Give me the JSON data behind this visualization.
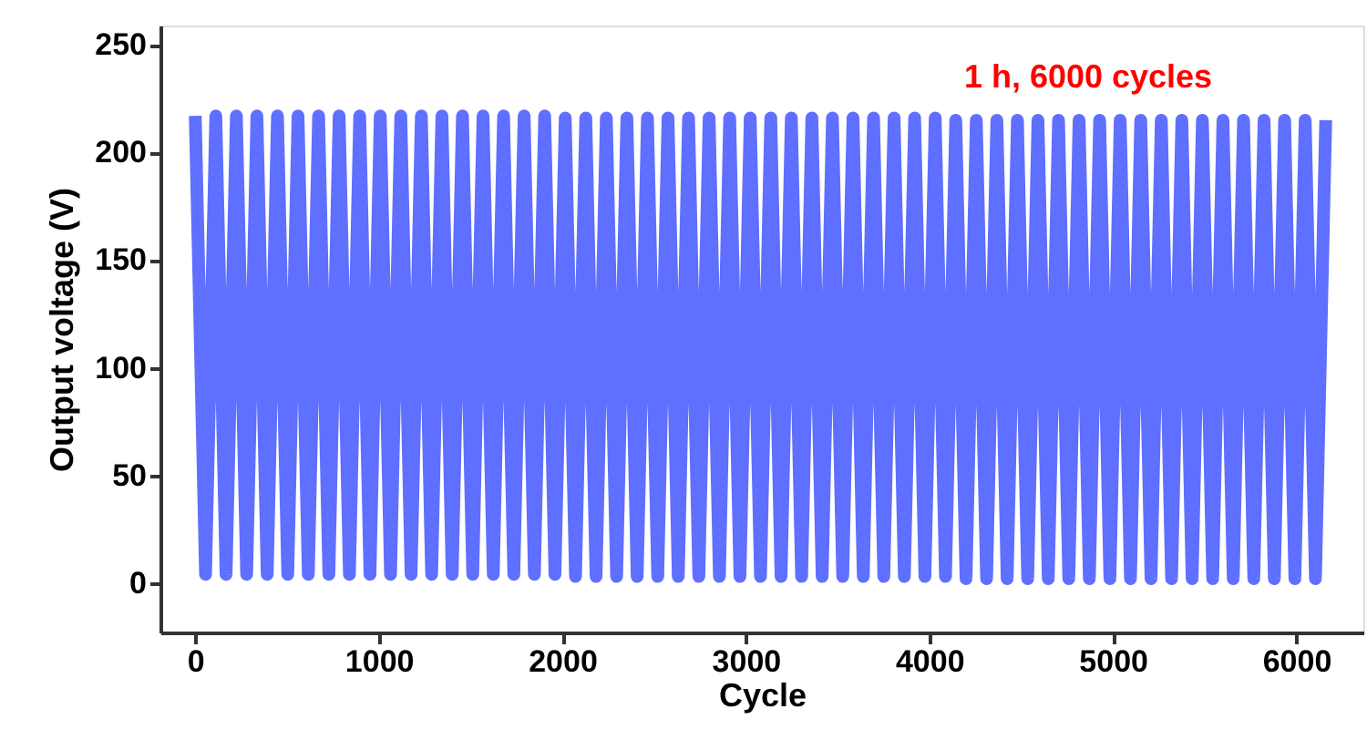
{
  "chart_data": {
    "type": "line",
    "xlabel": "Cycle",
    "ylabel": "Output voltage (V)",
    "annotations": [
      "1 h, 6000 cycles"
    ],
    "xlim": [
      -190,
      6365
    ],
    "ylim": [
      -23,
      259
    ],
    "xticks": [
      0,
      1000,
      2000,
      3000,
      4000,
      5000,
      6000
    ],
    "yticks": [
      0,
      50,
      100,
      150,
      200,
      250
    ],
    "grid": false,
    "marker": "none",
    "line_style": "solid",
    "x": [
      0,
      56,
      112,
      168,
      224,
      280,
      336,
      392,
      448,
      504,
      560,
      616,
      672,
      728,
      784,
      840,
      896,
      952,
      1008,
      1064,
      1120,
      1176,
      1232,
      1288,
      1344,
      1400,
      1456,
      1512,
      1568,
      1624,
      1680,
      1736,
      1792,
      1848,
      1904,
      1960,
      2016,
      2072,
      2128,
      2184,
      2240,
      2296,
      2352,
      2408,
      2464,
      2520,
      2576,
      2632,
      2688,
      2744,
      2800,
      2856,
      2912,
      2968,
      3024,
      3080,
      3136,
      3192,
      3248,
      3304,
      3360,
      3416,
      3472,
      3528,
      3584,
      3640,
      3696,
      3752,
      3808,
      3864,
      3920,
      3976,
      4032,
      4088,
      4144,
      4200,
      4256,
      4312,
      4368,
      4424,
      4480,
      4536,
      4592,
      4648,
      4704,
      4760,
      4816,
      4872,
      4928,
      4984,
      5040,
      5096,
      5152,
      5208,
      5264,
      5320,
      5376,
      5432,
      5488,
      5544,
      5600,
      5656,
      5712,
      5768,
      5824,
      5880,
      5936,
      5992,
      6048,
      6104,
      6160
    ],
    "series": [
      {
        "color": "#5f6fff",
        "values": [
          217,
          4,
          217,
          4,
          217,
          4,
          217,
          4,
          217,
          4,
          217,
          4,
          217,
          4,
          217,
          4,
          217,
          4,
          217,
          4,
          217,
          4,
          217,
          4,
          217,
          4,
          217,
          4,
          217,
          4,
          217,
          4,
          217,
          4,
          217,
          4,
          216,
          3,
          216,
          3,
          216,
          3,
          216,
          3,
          216,
          3,
          216,
          3,
          216,
          3,
          216,
          3,
          216,
          3,
          216,
          3,
          216,
          3,
          216,
          3,
          216,
          3,
          216,
          3,
          216,
          3,
          216,
          3,
          216,
          3,
          216,
          3,
          216,
          3,
          215,
          2,
          215,
          2,
          215,
          2,
          215,
          2,
          215,
          2,
          215,
          2,
          215,
          2,
          215,
          2,
          215,
          2,
          215,
          2,
          215,
          2,
          215,
          2,
          215,
          2,
          215,
          2,
          215,
          2,
          215,
          2,
          215,
          2,
          215,
          2,
          215
        ]
      }
    ]
  }
}
